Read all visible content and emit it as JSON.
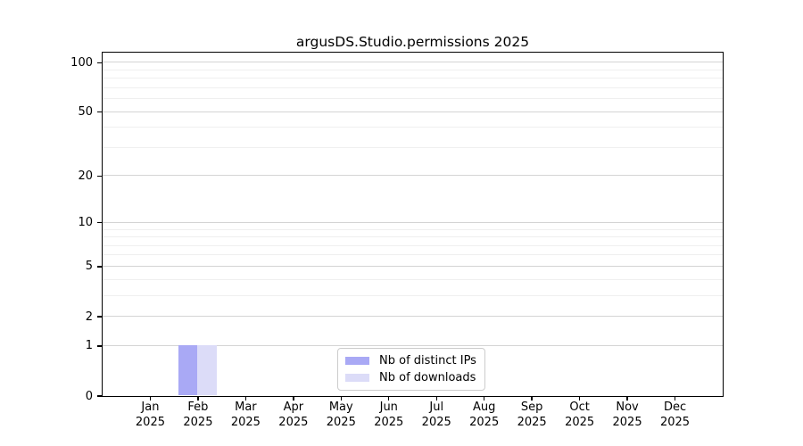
{
  "chart": {
    "title": "argusDS.Studio.permissions 2025"
  },
  "chart_data": {
    "type": "bar",
    "title": "argusDS.Studio.permissions 2025",
    "categories": [
      "Jan 2025",
      "Feb 2025",
      "Mar 2025",
      "Apr 2025",
      "May 2025",
      "Jun 2025",
      "Jul 2025",
      "Aug 2025",
      "Sep 2025",
      "Oct 2025",
      "Nov 2025",
      "Dec 2025"
    ],
    "series": [
      {
        "name": "Nb of distinct IPs",
        "color": "#a9a9f5",
        "values": [
          0,
          1,
          0,
          0,
          0,
          0,
          0,
          0,
          0,
          0,
          0,
          0
        ]
      },
      {
        "name": "Nb of downloads",
        "color": "#dcdcf8",
        "values": [
          0,
          1,
          0,
          0,
          0,
          0,
          0,
          0,
          0,
          0,
          0,
          0
        ]
      }
    ],
    "xlabel": "",
    "ylabel": "",
    "yscale": "log1p",
    "ylim": [
      0,
      115
    ],
    "y_ticks": [
      0,
      1,
      2,
      5,
      10,
      20,
      50,
      100
    ],
    "y_minor_gridlines": [
      3,
      4,
      6,
      7,
      8,
      9,
      30,
      40,
      60,
      70,
      80,
      90
    ],
    "grid": "horizontal",
    "legend_position": "lower center",
    "background": "#ffffff"
  }
}
